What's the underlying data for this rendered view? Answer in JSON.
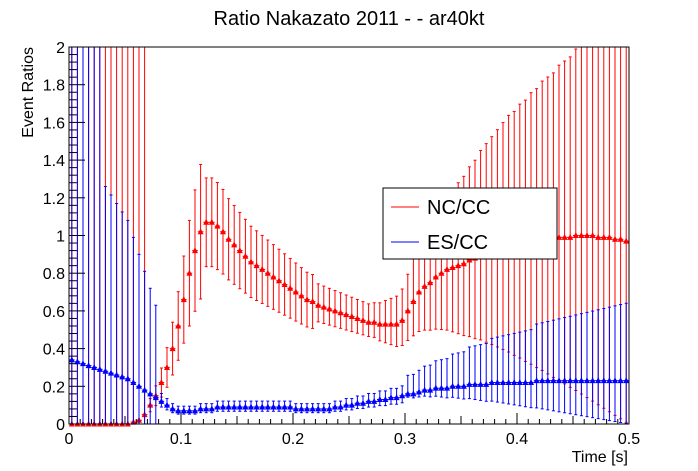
{
  "chart_data": {
    "type": "scatter",
    "title": "Ratio Nakazato 2011 -  - ar40kt",
    "xlabel": "Time [s]",
    "ylabel": "Event Ratios",
    "xlim": [
      0,
      0.5
    ],
    "ylim": [
      0,
      2
    ],
    "xticks": [
      0,
      0.1,
      0.2,
      0.3,
      0.4,
      0.5
    ],
    "xtick_labels": [
      "0",
      "0.1",
      "0.2",
      "0.3",
      "0.4",
      "0.5"
    ],
    "yticks": [
      0,
      0.2,
      0.4,
      0.6,
      0.8,
      1,
      1.2,
      1.4,
      1.6,
      1.8,
      2
    ],
    "ytick_labels": [
      "0",
      "0.2",
      "0.4",
      "0.6",
      "0.8",
      "1",
      "1.2",
      "1.4",
      "1.6",
      "1.8",
      "2"
    ],
    "legend": {
      "placement": "center-right",
      "entries": [
        "NC/CC",
        "ES/CC"
      ]
    },
    "series": [
      {
        "name": "NC/CC",
        "color": "#ff0000",
        "marker": "triangle",
        "x_start": 0.0025,
        "x_step": 0.005,
        "values": [
          0,
          0,
          0,
          0,
          0,
          0,
          0,
          0,
          0,
          0,
          0,
          0.01,
          0.02,
          0.05,
          0.1,
          0.15,
          0.22,
          0.3,
          0.4,
          0.52,
          0.66,
          0.8,
          0.92,
          1.02,
          1.07,
          1.07,
          1.05,
          1.02,
          0.98,
          0.95,
          0.92,
          0.89,
          0.86,
          0.84,
          0.82,
          0.8,
          0.78,
          0.76,
          0.74,
          0.72,
          0.7,
          0.68,
          0.66,
          0.65,
          0.63,
          0.62,
          0.61,
          0.6,
          0.59,
          0.58,
          0.57,
          0.56,
          0.55,
          0.54,
          0.54,
          0.53,
          0.53,
          0.53,
          0.53,
          0.55,
          0.6,
          0.65,
          0.7,
          0.73,
          0.75,
          0.78,
          0.8,
          0.82,
          0.83,
          0.84,
          0.85,
          0.87,
          0.88,
          0.9,
          0.91,
          0.92,
          0.93,
          0.94,
          0.95,
          0.95,
          0.96,
          0.96,
          0.97,
          0.97,
          0.98,
          0.98,
          0.98,
          0.99,
          0.99,
          0.99,
          1.0,
          1.0,
          1.0,
          1.0,
          0.99,
          0.99,
          0.99,
          0.98,
          0.98,
          0.97
        ],
        "errors": [
          {
            "x0": 0,
            "x1": 0.07,
            "lo": 0,
            "hi": 2
          },
          {
            "x0": 0.07,
            "x1": 0.12,
            "lo_rel": 0.65,
            "hi_rel": 1.35
          },
          {
            "x0": 0.12,
            "x1": 0.22,
            "lo_rel": 0.78,
            "hi_rel": 1.22
          },
          {
            "x0": 0.22,
            "x1": 0.27,
            "lo_rel": 0.86,
            "hi_rel": 1.18
          },
          {
            "x0": 0.27,
            "x1": 0.5,
            "lo_rel_start": 0.86,
            "lo_rel_end": 0.0,
            "hi_rel_start": 1.18,
            "hi_rel_end": 2.2
          }
        ]
      },
      {
        "name": "ES/CC",
        "color": "#0000ff",
        "marker": "triangle",
        "x_start": 0.0025,
        "x_step": 0.005,
        "values": [
          0.34,
          0.33,
          0.32,
          0.31,
          0.3,
          0.29,
          0.28,
          0.27,
          0.26,
          0.25,
          0.24,
          0.22,
          0.2,
          0.18,
          0.16,
          0.14,
          0.12,
          0.1,
          0.08,
          0.07,
          0.07,
          0.07,
          0.07,
          0.08,
          0.08,
          0.08,
          0.09,
          0.09,
          0.09,
          0.09,
          0.09,
          0.09,
          0.09,
          0.09,
          0.09,
          0.09,
          0.09,
          0.09,
          0.09,
          0.09,
          0.08,
          0.08,
          0.08,
          0.08,
          0.08,
          0.08,
          0.08,
          0.09,
          0.09,
          0.1,
          0.1,
          0.11,
          0.11,
          0.12,
          0.12,
          0.13,
          0.13,
          0.14,
          0.14,
          0.15,
          0.16,
          0.16,
          0.17,
          0.18,
          0.18,
          0.19,
          0.19,
          0.19,
          0.2,
          0.2,
          0.2,
          0.21,
          0.21,
          0.21,
          0.21,
          0.22,
          0.22,
          0.22,
          0.22,
          0.22,
          0.22,
          0.22,
          0.22,
          0.23,
          0.23,
          0.23,
          0.23,
          0.23,
          0.23,
          0.23,
          0.23,
          0.23,
          0.23,
          0.23,
          0.23,
          0.23,
          0.23,
          0.23,
          0.23,
          0.23
        ],
        "errors": [
          {
            "x0": 0,
            "x1": 0.03,
            "lo": 0,
            "hi": 2
          },
          {
            "x0": 0.03,
            "x1": 0.08,
            "lo_rel": 0.0,
            "hi_rel": 4.5
          },
          {
            "x0": 0.08,
            "x1": 0.3,
            "lo_rel": 0.75,
            "hi_rel": 1.35
          },
          {
            "x0": 0.3,
            "x1": 0.5,
            "lo_rel_start": 0.9,
            "lo_rel_end": 0.0,
            "hi_rel_start": 1.6,
            "hi_rel_end": 2.8
          }
        ]
      }
    ]
  }
}
